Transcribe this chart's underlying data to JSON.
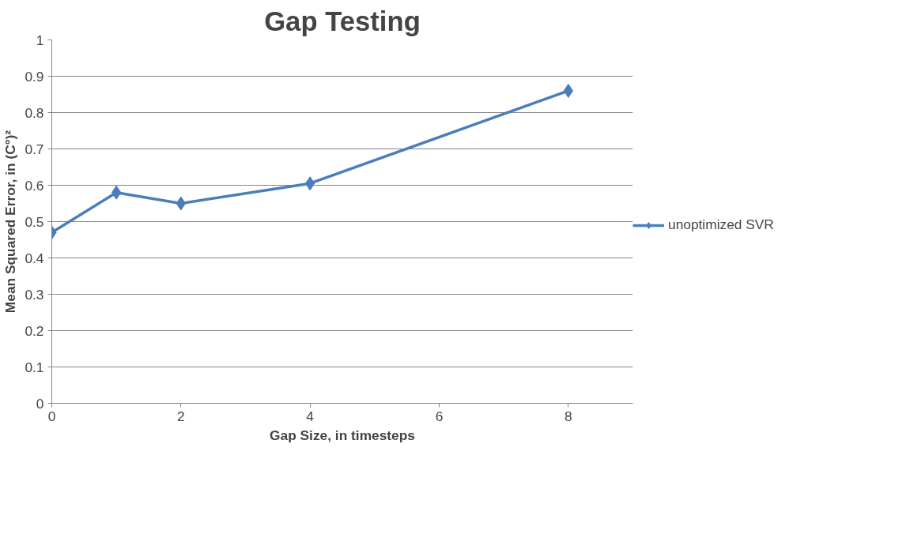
{
  "chart_data": {
    "type": "line",
    "title": "Gap Testing",
    "xlabel": "Gap Size, in timesteps",
    "ylabel": "Mean Squared Error, in (C°)²",
    "x": [
      0,
      1,
      2,
      4,
      8
    ],
    "series": [
      {
        "name": "unoptimized SVR",
        "color": "#4a7ebb",
        "values": [
          0.47,
          0.58,
          0.55,
          0.605,
          0.86
        ]
      }
    ],
    "xlim": [
      0,
      9
    ],
    "xticks": [
      0,
      2,
      4,
      6,
      8
    ],
    "ylim": [
      0,
      1
    ],
    "yticks": [
      0,
      {
        "value": 0.1,
        "label": "0.1"
      },
      {
        "value": 0.2,
        "label": "0.2"
      },
      {
        "value": 0.3,
        "label": "0.3"
      },
      {
        "value": 0.4,
        "label": "0.4"
      },
      {
        "value": 0.5,
        "label": "0.5"
      },
      {
        "value": 0.6,
        "label": "0.6"
      },
      {
        "value": 0.7,
        "label": "0.7"
      },
      {
        "value": 0.8,
        "label": "0.8"
      },
      {
        "value": 0.9,
        "label": "0.9"
      },
      1
    ],
    "grid": "y",
    "legend": "right",
    "marker": "diamond",
    "line_style": "solid"
  }
}
